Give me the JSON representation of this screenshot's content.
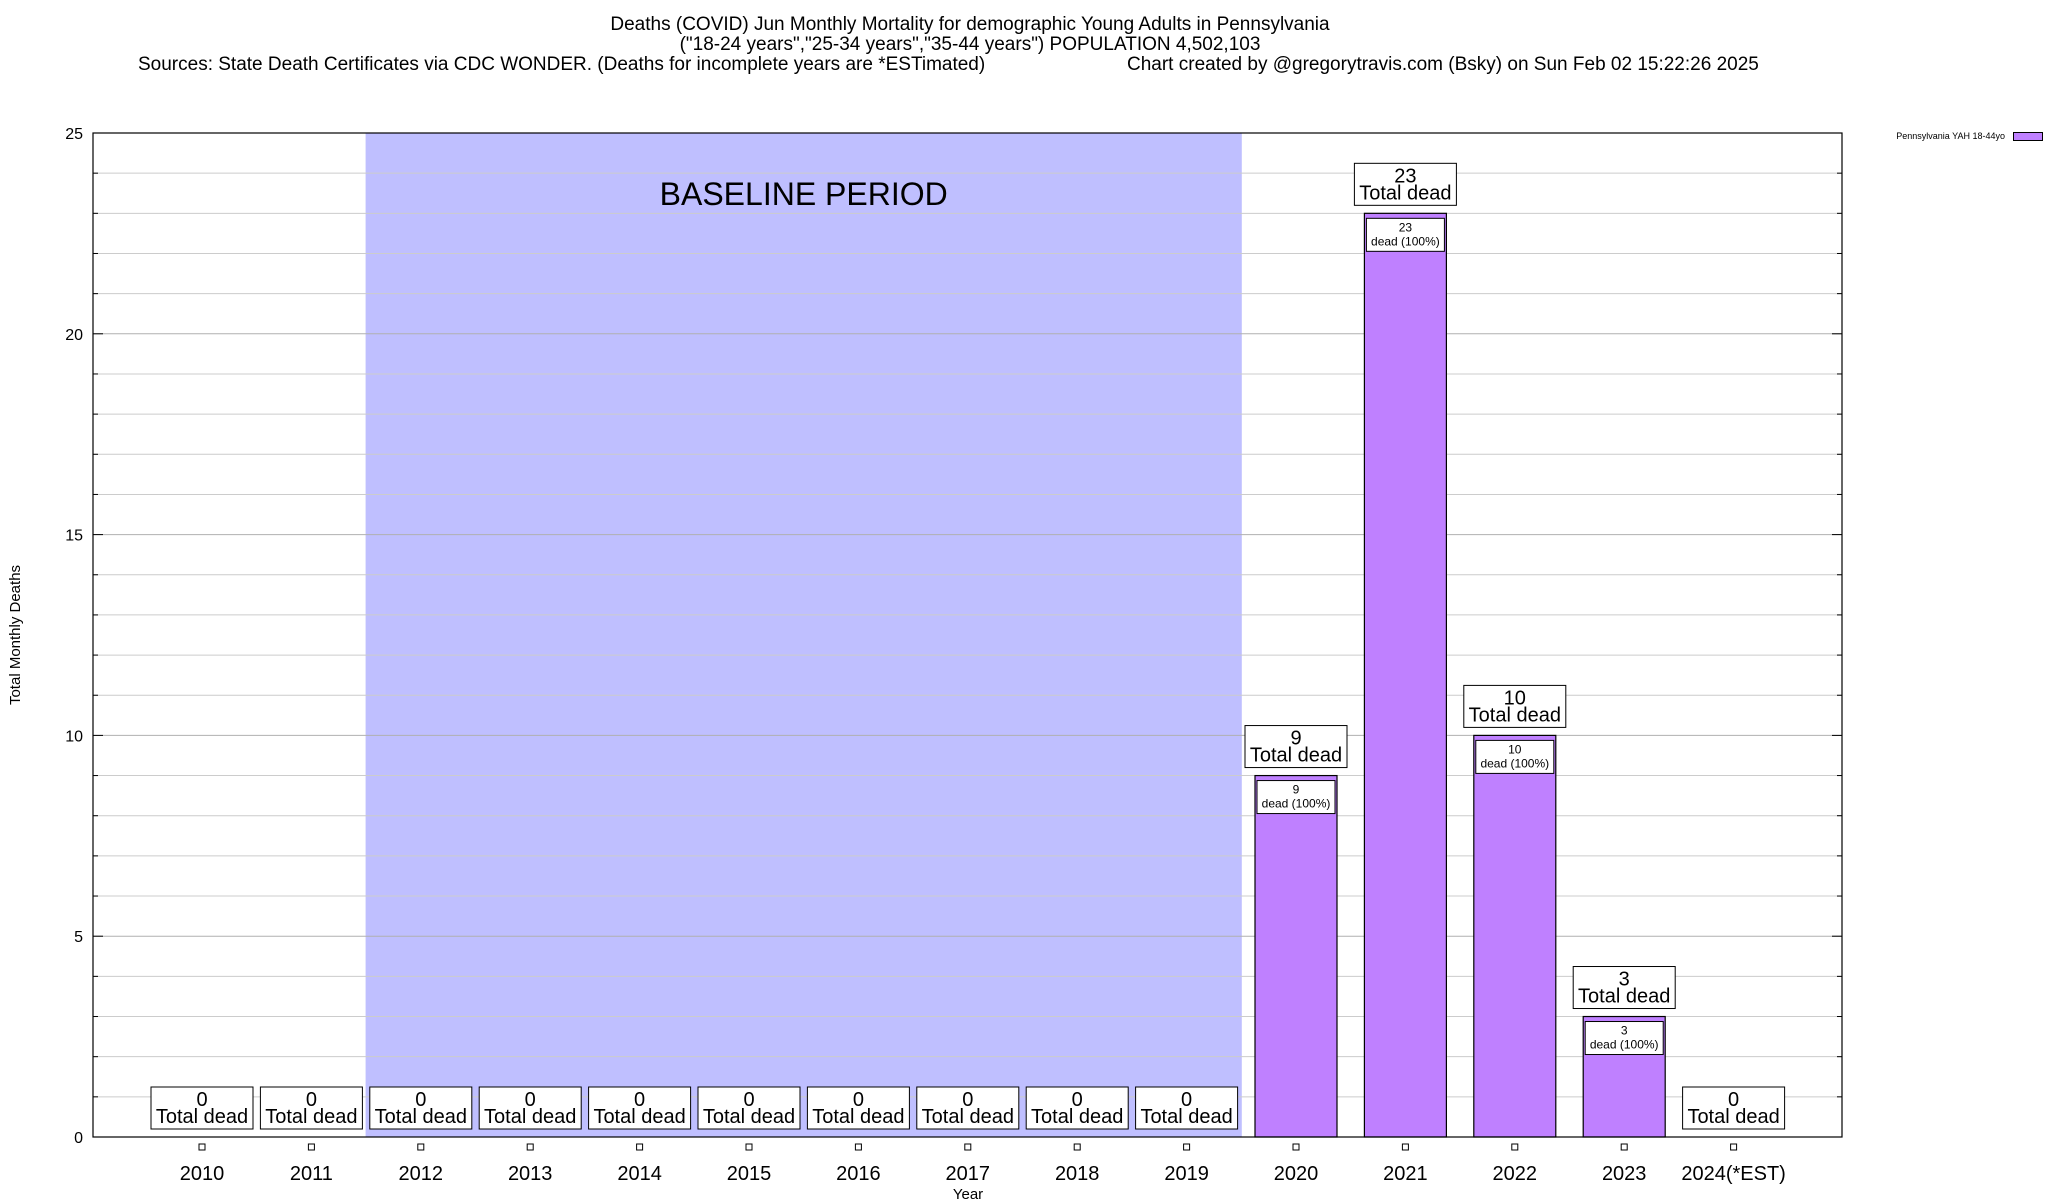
{
  "header": {
    "title": "Deaths (COVID) Jun Monthly Mortality for demographic Young Adults in Pennsylvania",
    "subtitle": "(\"18-24 years\",\"25-34 years\",\"35-44 years\") POPULATION 4,502,103",
    "sources": "Sources: State Death Certificates via CDC WONDER. (Deaths for incomplete years are *ESTimated)",
    "credit": "Chart created by @gregorytravis.com (Bsky) on Sun Feb 02 15:22:26 2025"
  },
  "legend": {
    "label": "Pennsylvania YAH 18-44yo",
    "color": "#bf80ff"
  },
  "chart_data": {
    "type": "bar",
    "categories": [
      "2010",
      "2011",
      "2012",
      "2013",
      "2014",
      "2015",
      "2016",
      "2017",
      "2018",
      "2019",
      "2020",
      "2021",
      "2022",
      "2023",
      "2024(*EST)"
    ],
    "series": [
      {
        "name": "Pennsylvania YAH 18-44yo",
        "values": [
          0,
          0,
          0,
          0,
          0,
          0,
          0,
          0,
          0,
          0,
          9,
          23,
          10,
          3,
          0
        ]
      }
    ],
    "total_label": "Total dead",
    "inner_label_suffix": "dead (100%)",
    "xlabel": "Year",
    "ylabel": "Total Monthly Deaths",
    "ylim": [
      0,
      25
    ],
    "yticks": [
      0,
      5,
      10,
      15,
      20,
      25
    ],
    "grid": true,
    "baseline": {
      "label": "BASELINE PERIOD",
      "from": "2012",
      "to": "2019",
      "color": "#bfbfff"
    },
    "bar_color": "#bf80ff",
    "bar_edge_color": "#000000",
    "legend_position": "top-right"
  }
}
